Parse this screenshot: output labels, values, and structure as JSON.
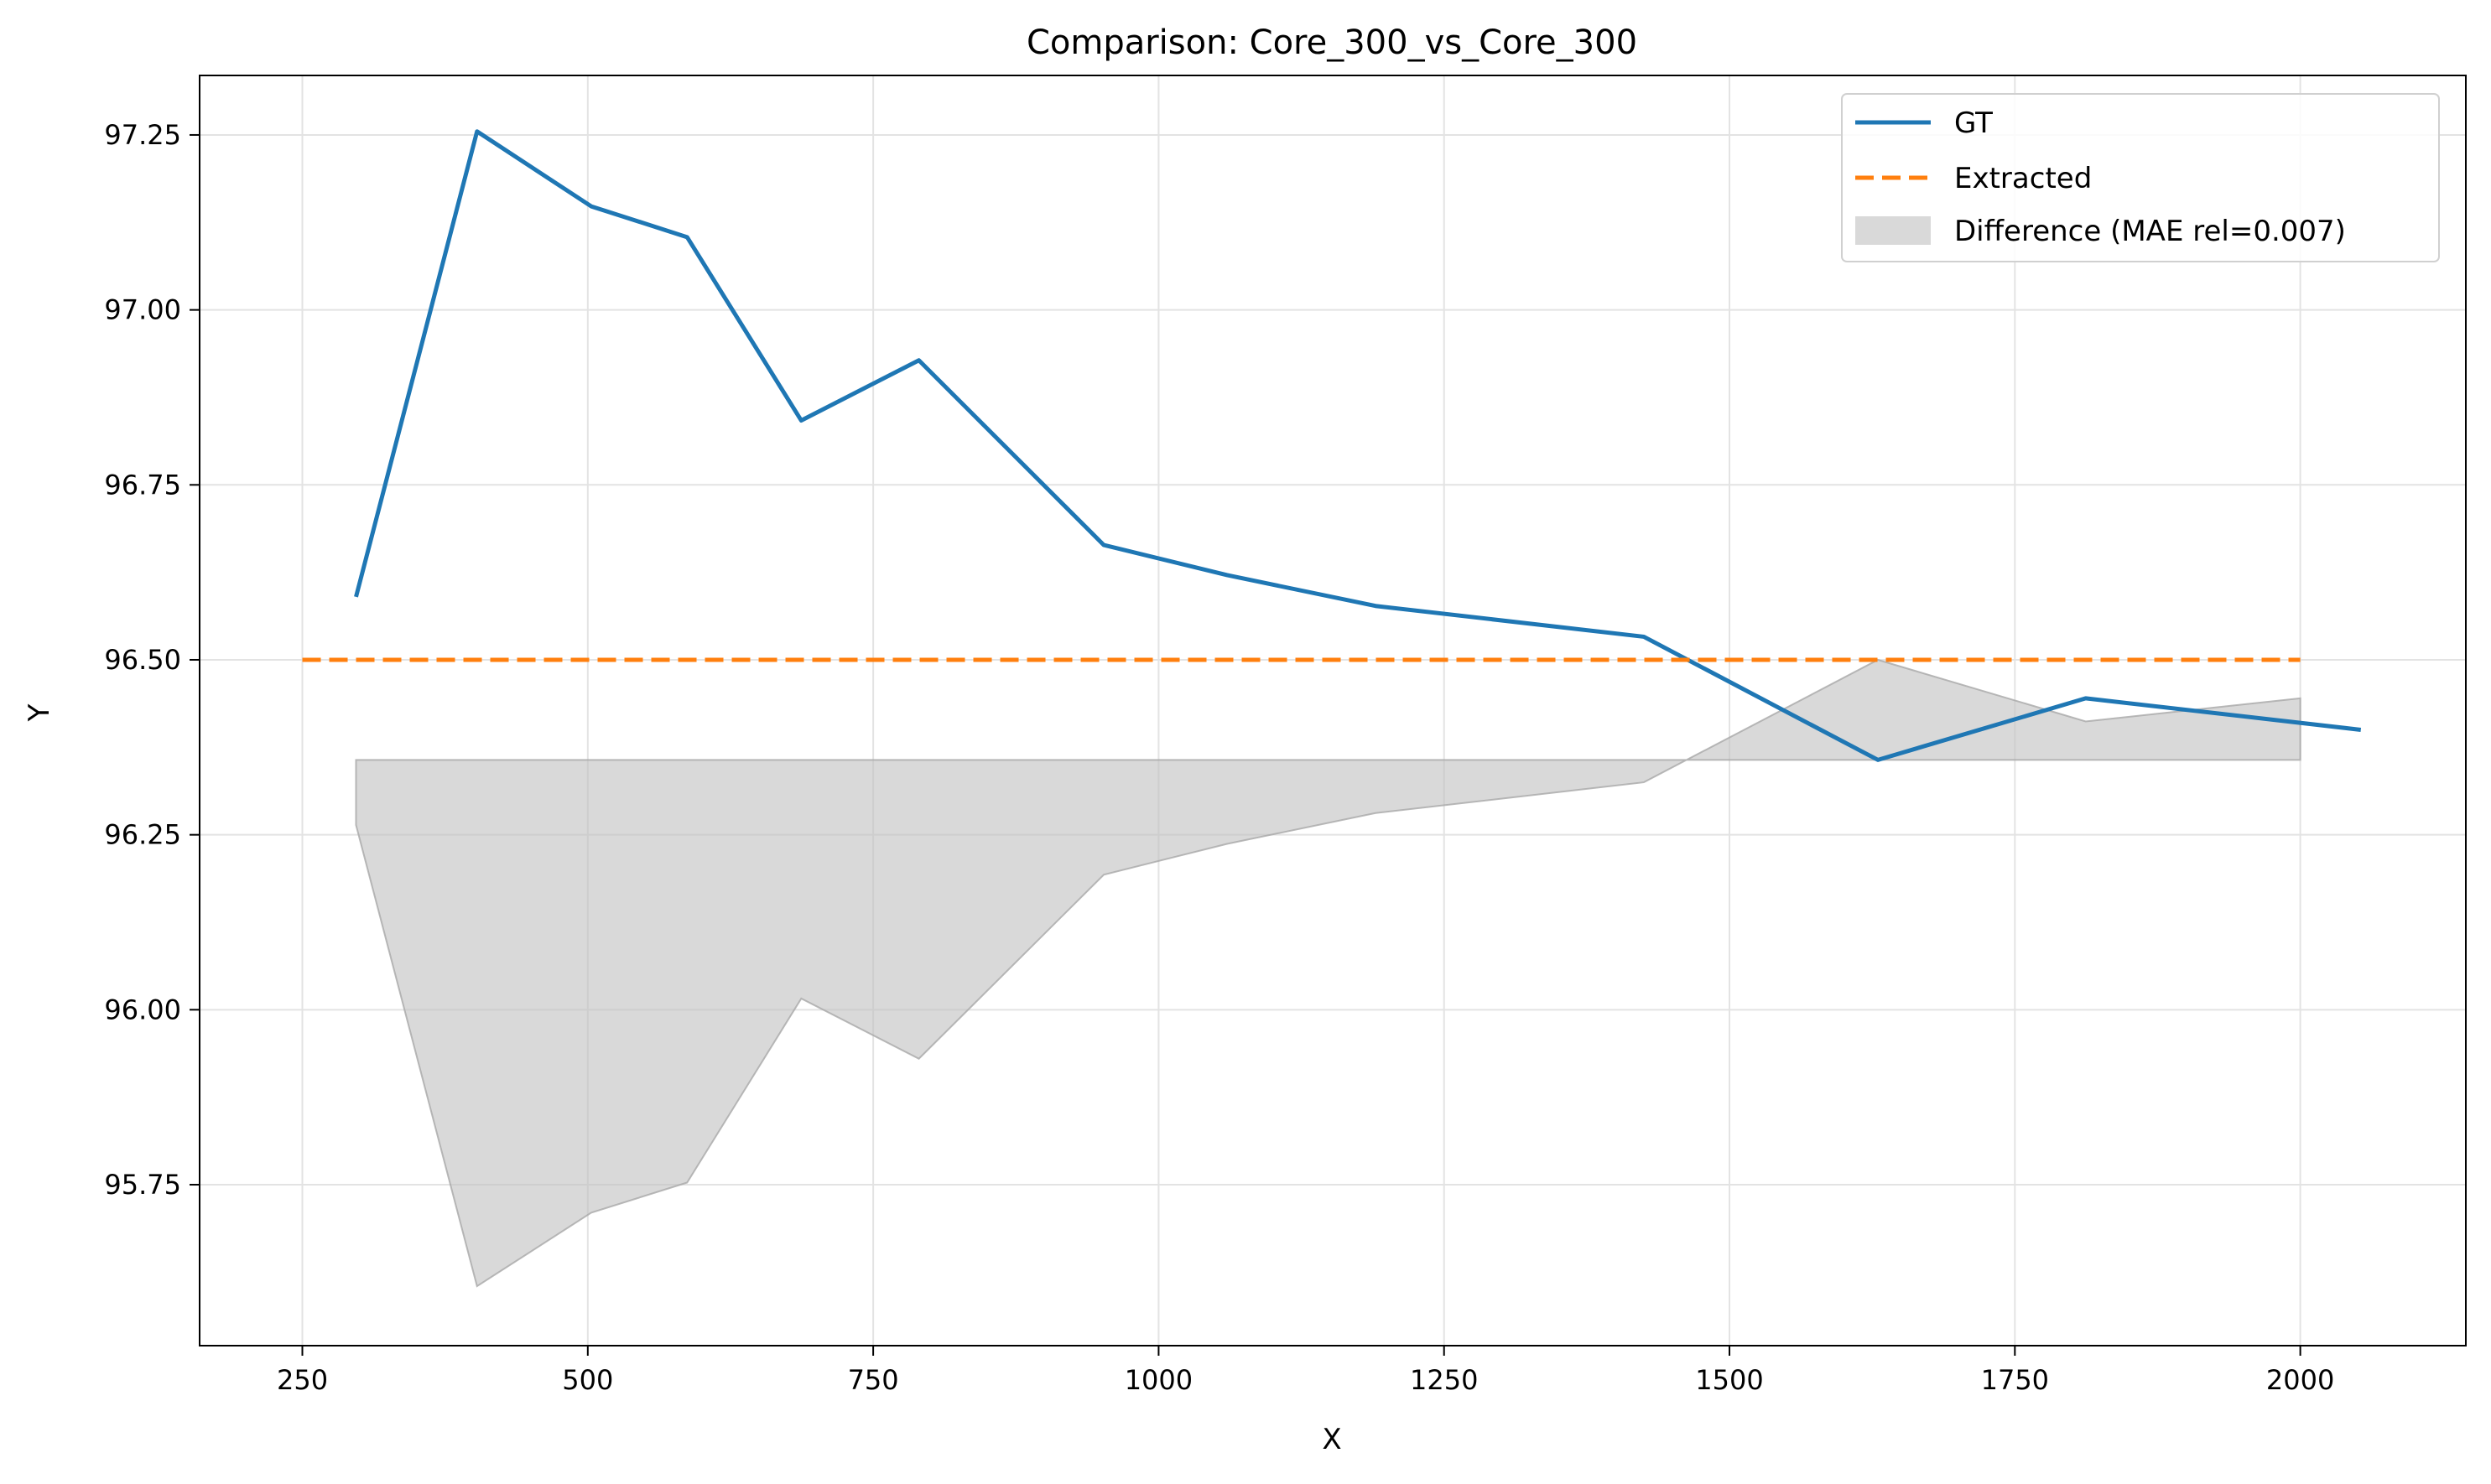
{
  "chart_data": {
    "type": "line",
    "title": "Comparison: Core_300_vs_Core_300",
    "xlabel": "X",
    "ylabel": "Y",
    "xlim": [
      160,
      2145
    ],
    "ylim": [
      95.52,
      97.335
    ],
    "xticks": [
      250,
      500,
      750,
      1000,
      1250,
      1500,
      1750,
      2000
    ],
    "xtick_labels": [
      "250",
      "500",
      "750",
      "1000",
      "1250",
      "1500",
      "1750",
      "2000"
    ],
    "yticks": [
      95.75,
      96.0,
      96.25,
      96.5,
      96.75,
      97.0,
      97.25
    ],
    "ytick_labels": [
      "95.75",
      "96.00",
      "96.25",
      "96.50",
      "96.75",
      "97.00",
      "97.25"
    ],
    "grid": true,
    "legend_position": "top-right",
    "series": [
      {
        "name": "GT",
        "style": "solid",
        "color": "#1f77b4",
        "x": [
          297,
          403,
          503,
          587,
          687,
          790,
          952,
          1060,
          1190,
          1425,
          1630,
          1812,
          2053
        ],
        "y": [
          96.59,
          97.255,
          97.148,
          97.104,
          96.842,
          96.928,
          96.664,
          96.621,
          96.577,
          96.533,
          96.357,
          96.445,
          96.4
        ]
      },
      {
        "name": "Extracted",
        "style": "dashed",
        "color": "#ff7f0e",
        "x": [
          250,
          2000
        ],
        "y": [
          96.5,
          96.5
        ]
      }
    ],
    "difference_fill": {
      "name": "Difference (MAE rel=0.007)",
      "color": "#bfbfbf",
      "upper_edge": {
        "x": [
          297,
          2000
        ],
        "y": [
          96.357,
          96.357
        ]
      },
      "lower_edge": {
        "x": [
          297,
          297,
          403,
          503,
          587,
          687,
          790,
          952,
          1060,
          1190,
          1425,
          1630,
          1812,
          2000,
          2000
        ],
        "y": [
          96.357,
          96.264,
          95.605,
          95.71,
          95.753,
          96.016,
          95.93,
          96.193,
          96.237,
          96.281,
          96.325,
          96.5,
          96.412,
          96.445,
          96.357
        ]
      }
    }
  }
}
